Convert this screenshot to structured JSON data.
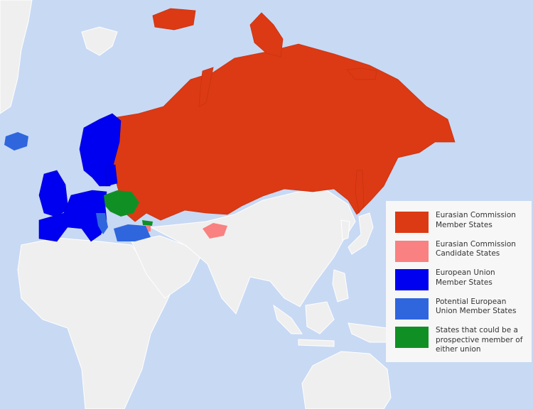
{
  "colors": {
    "ocean": "#c8d9f4",
    "land": "#efefef",
    "eurasian_member": "#dc3a14",
    "eurasian_candidate": "#f98181",
    "eu_member": "#0000f0",
    "eu_potential": "#2f66de",
    "either_union": "#109024"
  },
  "legend": {
    "items": [
      {
        "label": "Eurasian Commission Member States",
        "color": "#dc3a14"
      },
      {
        "label": "Eurasian Commission Candidate States",
        "color": "#f98181"
      },
      {
        "label": "European Union Member States",
        "color": "#0000f0"
      },
      {
        "label": "Potential European Union Member States",
        "color": "#2f66de"
      },
      {
        "label": "States that could be a prospective member of either union",
        "color": "#109024"
      }
    ]
  }
}
